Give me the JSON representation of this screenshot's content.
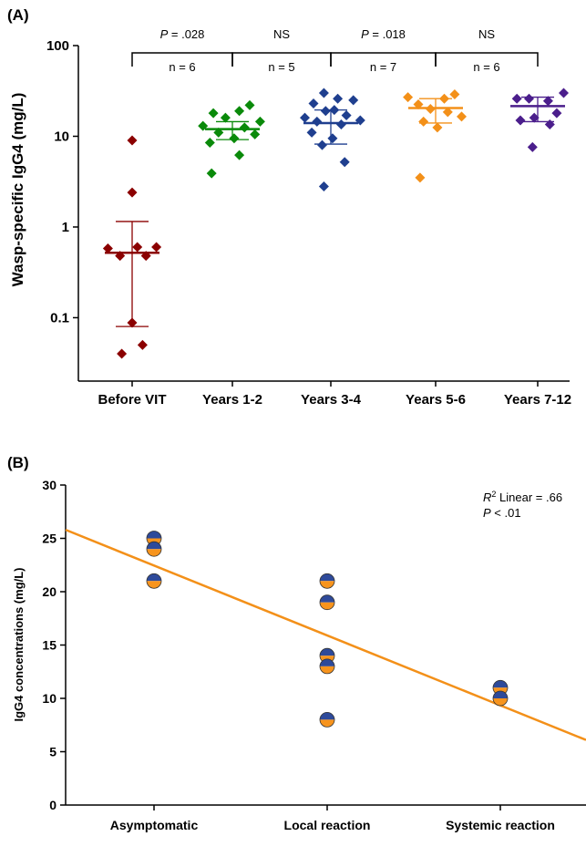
{
  "panels": {
    "a_label": "(A)",
    "b_label": "(B)"
  },
  "chart_data": [
    {
      "type": "scatter",
      "panel": "(A)",
      "ylabel": "Wasp-specific IgG4 (mg/L)",
      "yscale": "log",
      "ylim": [
        0.02,
        100
      ],
      "yticks": [
        0.1,
        1,
        10,
        100
      ],
      "ytick_labels": [
        "0.1",
        "1",
        "10",
        "100"
      ],
      "categories": [
        "Before VIT",
        "Years 1-2",
        "Years 3-4",
        "Years 5-6",
        "Years 7-12"
      ],
      "series": [
        {
          "category": "Before VIT",
          "color": "#8B0000",
          "center": 0.52,
          "err_low": 0.08,
          "err_high": 1.15,
          "points": [
            {
              "y": 9.0,
              "o": 0.0
            },
            {
              "y": 2.4,
              "o": 0.0
            },
            {
              "y": 0.58,
              "o": -0.7
            },
            {
              "y": 0.48,
              "o": -0.35
            },
            {
              "y": 0.6,
              "o": 0.15
            },
            {
              "y": 0.48,
              "o": 0.4
            },
            {
              "y": 0.6,
              "o": 0.7
            },
            {
              "y": 0.088,
              "o": 0.0
            },
            {
              "y": 0.05,
              "o": 0.3
            },
            {
              "y": 0.04,
              "o": -0.3
            }
          ]
        },
        {
          "category": "Years 1-2",
          "color": "#0A8A0A",
          "center": 12,
          "err_low": 9.2,
          "err_high": 14.5,
          "points": [
            {
              "y": 22,
              "o": 0.5
            },
            {
              "y": 18,
              "o": -0.55
            },
            {
              "y": 19,
              "o": 0.2
            },
            {
              "y": 16,
              "o": -0.2
            },
            {
              "y": 14.5,
              "o": 0.8
            },
            {
              "y": 13,
              "o": -0.85
            },
            {
              "y": 12.5,
              "o": 0.35
            },
            {
              "y": 11,
              "o": -0.4
            },
            {
              "y": 10.5,
              "o": 0.65
            },
            {
              "y": 9.5,
              "o": 0.05
            },
            {
              "y": 8.5,
              "o": -0.65
            },
            {
              "y": 6.2,
              "o": 0.2
            },
            {
              "y": 3.9,
              "o": -0.6
            }
          ]
        },
        {
          "category": "Years 3-4",
          "color": "#1F3F8F",
          "center": 14,
          "err_low": 8.2,
          "err_high": 19.5,
          "points": [
            {
              "y": 30,
              "o": -0.2
            },
            {
              "y": 26,
              "o": 0.2
            },
            {
              "y": 25,
              "o": 0.65
            },
            {
              "y": 23,
              "o": -0.5
            },
            {
              "y": 19.5,
              "o": 0.1
            },
            {
              "y": 19,
              "o": -0.15
            },
            {
              "y": 17,
              "o": 0.45
            },
            {
              "y": 16,
              "o": -0.75
            },
            {
              "y": 15,
              "o": 0.85
            },
            {
              "y": 14.5,
              "o": -0.4
            },
            {
              "y": 13.5,
              "o": 0.3
            },
            {
              "y": 11,
              "o": -0.55
            },
            {
              "y": 9.5,
              "o": 0.05
            },
            {
              "y": 8,
              "o": -0.25
            },
            {
              "y": 5.2,
              "o": 0.4
            },
            {
              "y": 2.8,
              "o": -0.2
            }
          ]
        },
        {
          "category": "Years 5-6",
          "color": "#F39019",
          "center": 20.5,
          "err_low": 14,
          "err_high": 26,
          "points": [
            {
              "y": 29,
              "o": 0.55
            },
            {
              "y": 27,
              "o": -0.8
            },
            {
              "y": 26,
              "o": 0.25
            },
            {
              "y": 22.5,
              "o": -0.5
            },
            {
              "y": 20,
              "o": -0.15
            },
            {
              "y": 18.5,
              "o": 0.35
            },
            {
              "y": 16.5,
              "o": 0.75
            },
            {
              "y": 14.5,
              "o": -0.35
            },
            {
              "y": 12.5,
              "o": 0.05
            },
            {
              "y": 3.5,
              "o": -0.45
            }
          ]
        },
        {
          "category": "Years 7-12",
          "color": "#4B1E8C",
          "center": 21.5,
          "err_low": 14.5,
          "err_high": 27,
          "points": [
            {
              "y": 30,
              "o": 0.75
            },
            {
              "y": 26,
              "o": -0.6
            },
            {
              "y": 26,
              "o": -0.25
            },
            {
              "y": 24.5,
              "o": 0.3
            },
            {
              "y": 18,
              "o": 0.55
            },
            {
              "y": 16,
              "o": -0.1
            },
            {
              "y": 15,
              "o": -0.5
            },
            {
              "y": 13.5,
              "o": 0.35
            },
            {
              "y": 7.6,
              "o": -0.15
            }
          ]
        }
      ],
      "comparisons": [
        {
          "from": 0,
          "to": 1,
          "p_label": "P",
          "p_value": " = .028",
          "n_label": "n = 6"
        },
        {
          "from": 1,
          "to": 2,
          "p_label": "",
          "p_value": "NS",
          "n_label": "n = 5"
        },
        {
          "from": 2,
          "to": 3,
          "p_label": "P",
          "p_value": " = .018",
          "n_label": "n = 7"
        },
        {
          "from": 3,
          "to": 4,
          "p_label": "",
          "p_value": "NS",
          "n_label": "n = 6"
        }
      ]
    },
    {
      "type": "scatter",
      "panel": "(B)",
      "ylabel": "IgG4 concentrations (mg/L)",
      "ylim": [
        0,
        30
      ],
      "yticks": [
        0,
        5,
        10,
        15,
        20,
        25,
        30
      ],
      "categories": [
        "Asymptomatic",
        "Local reaction",
        "Systemic reaction"
      ],
      "marker_top_color": "#2E4A9A",
      "marker_bottom_color": "#F7941D",
      "points": [
        {
          "category": "Asymptomatic",
          "y": 25
        },
        {
          "category": "Asymptomatic",
          "y": 24
        },
        {
          "category": "Asymptomatic",
          "y": 21
        },
        {
          "category": "Local reaction",
          "y": 21
        },
        {
          "category": "Local reaction",
          "y": 19
        },
        {
          "category": "Local reaction",
          "y": 14
        },
        {
          "category": "Local reaction",
          "y": 13
        },
        {
          "category": "Local reaction",
          "y": 8
        },
        {
          "category": "Systemic reaction",
          "y": 11
        },
        {
          "category": "Systemic reaction",
          "y": 10
        }
      ],
      "fit_line": {
        "color": "#F39019",
        "y_at_axis_start": 25.8,
        "y_at_axis_end": 6.1
      },
      "annotation": {
        "r2_symbol": "R",
        "r2_sup": "2",
        "r2_text": " Linear = .66",
        "p_symbol": "P",
        "p_text": " < .01"
      }
    }
  ]
}
